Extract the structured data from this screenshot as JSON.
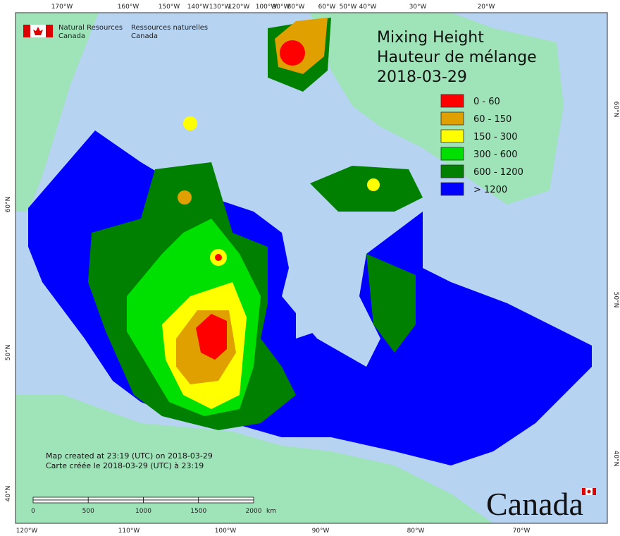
{
  "org": {
    "en": [
      "Natural Resources",
      "Canada"
    ],
    "fr": [
      "Ressources naturelles",
      "Canada"
    ]
  },
  "title": [
    "Mixing Height",
    "Hauteur de mélange",
    "2018-03-29"
  ],
  "legend": [
    {
      "label": "0 - 60",
      "color": "#ff0000"
    },
    {
      "label": "60 - 150",
      "color": "#e0a000"
    },
    {
      "label": "150 - 300",
      "color": "#ffff00"
    },
    {
      "label": "300 - 600",
      "color": "#00e000"
    },
    {
      "label": "600 - 1200",
      "color": "#008000"
    },
    {
      "label": "> 1200",
      "color": "#0000ff"
    }
  ],
  "top_labels": [
    "170°W",
    "160°W",
    "150°W",
    "140°W",
    "130°W",
    "120°W",
    "100°W",
    "90°W",
    "80°W",
    "60°W",
    "50°W",
    "40°W",
    "30°W",
    "20°W"
  ],
  "bottom_labels": [
    "120°W",
    "110°W",
    "100°W",
    "90°W",
    "80°W",
    "70°W"
  ],
  "left_labels": [
    "60°N",
    "50°N",
    "40°N"
  ],
  "right_labels": [
    "60°N",
    "50°N",
    "40°N"
  ],
  "credits": [
    "Map created at 23:19 (UTC) on 2018-03-29",
    "Carte créée le 2018-03-29 (UTC) à 23:19"
  ],
  "scale": {
    "labels": [
      "0",
      "500",
      "1000",
      "1500",
      "2000"
    ],
    "unit": "km"
  },
  "wordmark": "Canada"
}
